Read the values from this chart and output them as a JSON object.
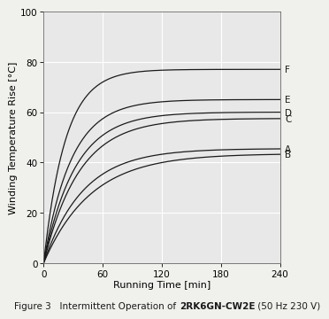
{
  "xlabel": "Running Time [min]",
  "ylabel": "Winding Temperature Rise [°C]",
  "xlim": [
    0,
    240
  ],
  "ylim": [
    0,
    100
  ],
  "xticks": [
    0,
    60,
    120,
    180,
    240
  ],
  "yticks": [
    0,
    20,
    40,
    60,
    80,
    100
  ],
  "plot_bg_color": "#e8e8e8",
  "fig_bg_color": "#f0f0ec",
  "curves": [
    {
      "label": "B",
      "tau": 48,
      "asymptote": 43.5,
      "color": "#1a1a1a"
    },
    {
      "label": "A",
      "tau": 40,
      "asymptote": 45.5,
      "color": "#1a1a1a"
    },
    {
      "label": "C",
      "tau": 36,
      "asymptote": 57.5,
      "color": "#1a1a1a"
    },
    {
      "label": "D",
      "tau": 32,
      "asymptote": 60.0,
      "color": "#1a1a1a"
    },
    {
      "label": "E",
      "tau": 28,
      "asymptote": 65.0,
      "color": "#1a1a1a"
    },
    {
      "label": "F",
      "tau": 22,
      "asymptote": 77.0,
      "color": "#1a1a1a"
    }
  ],
  "label_fontsize": 7.5,
  "axis_label_fontsize": 8,
  "tick_fontsize": 7.5,
  "caption_fontsize": 7.5,
  "caption_normal": "Figure 3   Intermittent Operation of ",
  "caption_bold": "2RK6GN-CW2E",
  "caption_end": " (50 Hz 230 V)"
}
